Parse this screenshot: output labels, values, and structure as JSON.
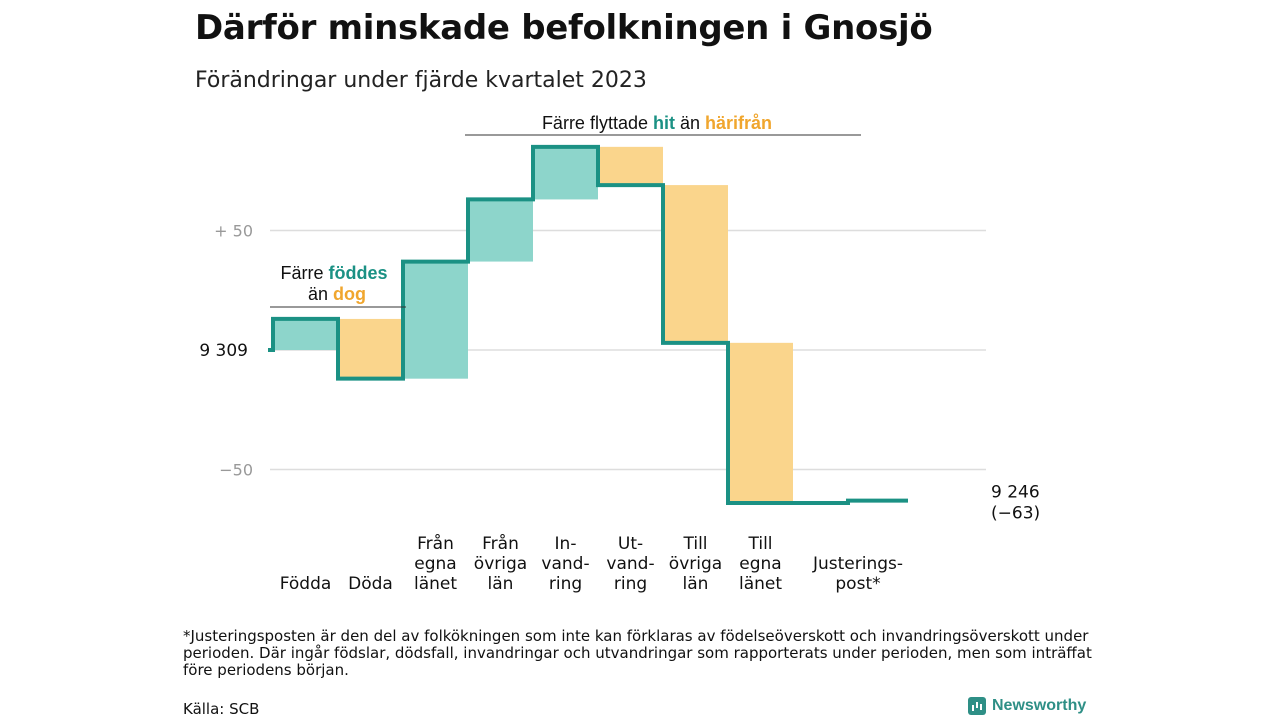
{
  "title": "Därför minskade befolkningen i Gnosjö",
  "subtitle": "Förändringar under fjärde kvartalet 2023",
  "colors": {
    "increase": "#8dd5cb",
    "decrease": "#fad58c",
    "line": "#1b9184",
    "teal_text": "#1b9184",
    "orange_text": "#f0a62e",
    "grid": "#dddddd"
  },
  "chart_data": {
    "type": "waterfall",
    "start_value": 9309,
    "start_label": "9 309",
    "end_label_value": "9 246",
    "end_label_change": "(−63)",
    "y_axis": {
      "ticks": [
        {
          "value": 50,
          "label": "+ 50"
        },
        {
          "value": 0,
          "label": ""
        },
        {
          "value": -50,
          "label": "−50"
        }
      ]
    },
    "steps": [
      {
        "label_lines": [
          "Födda"
        ],
        "value": 13,
        "kind": "inc"
      },
      {
        "label_lines": [
          "Döda"
        ],
        "value": -25,
        "kind": "dec"
      },
      {
        "label_lines": [
          "Från",
          "egna",
          "länet"
        ],
        "value": 49,
        "kind": "inc"
      },
      {
        "label_lines": [
          "Från",
          "övriga",
          "län"
        ],
        "value": 26,
        "kind": "inc"
      },
      {
        "label_lines": [
          "In-",
          "vand-",
          "ring"
        ],
        "value": 22,
        "kind": "inc"
      },
      {
        "label_lines": [
          "Ut-",
          "vand-",
          "ring"
        ],
        "value": -16,
        "kind": "dec"
      },
      {
        "label_lines": [
          "Till",
          "övriga",
          "län"
        ],
        "value": -66,
        "kind": "dec"
      },
      {
        "label_lines": [
          "Till",
          "egna",
          "länet"
        ],
        "value": -67,
        "kind": "dec"
      },
      {
        "label_lines": [
          "Justerings-",
          "post*"
        ],
        "value": 1,
        "kind": "adj"
      }
    ],
    "annotations": {
      "group1": {
        "line1": "Färre",
        "line1_colored": "föddes",
        "line2": "än",
        "line2_colored": "dog"
      },
      "group2": {
        "text": "Färre flyttade",
        "colored1": "hit",
        "middle": "än",
        "colored2": "härifrån"
      }
    }
  },
  "footnote": "*Justeringsposten är den del av folkökningen som inte kan förklaras av födelseöverskott och invandringsöverskott under perioden. Där ingår födslar, dödsfall, invandringar och utvandringar som rapporterats under perioden, men som inträffat före periodens början.",
  "source": "Källa: SCB",
  "brand": "Newsworthy"
}
